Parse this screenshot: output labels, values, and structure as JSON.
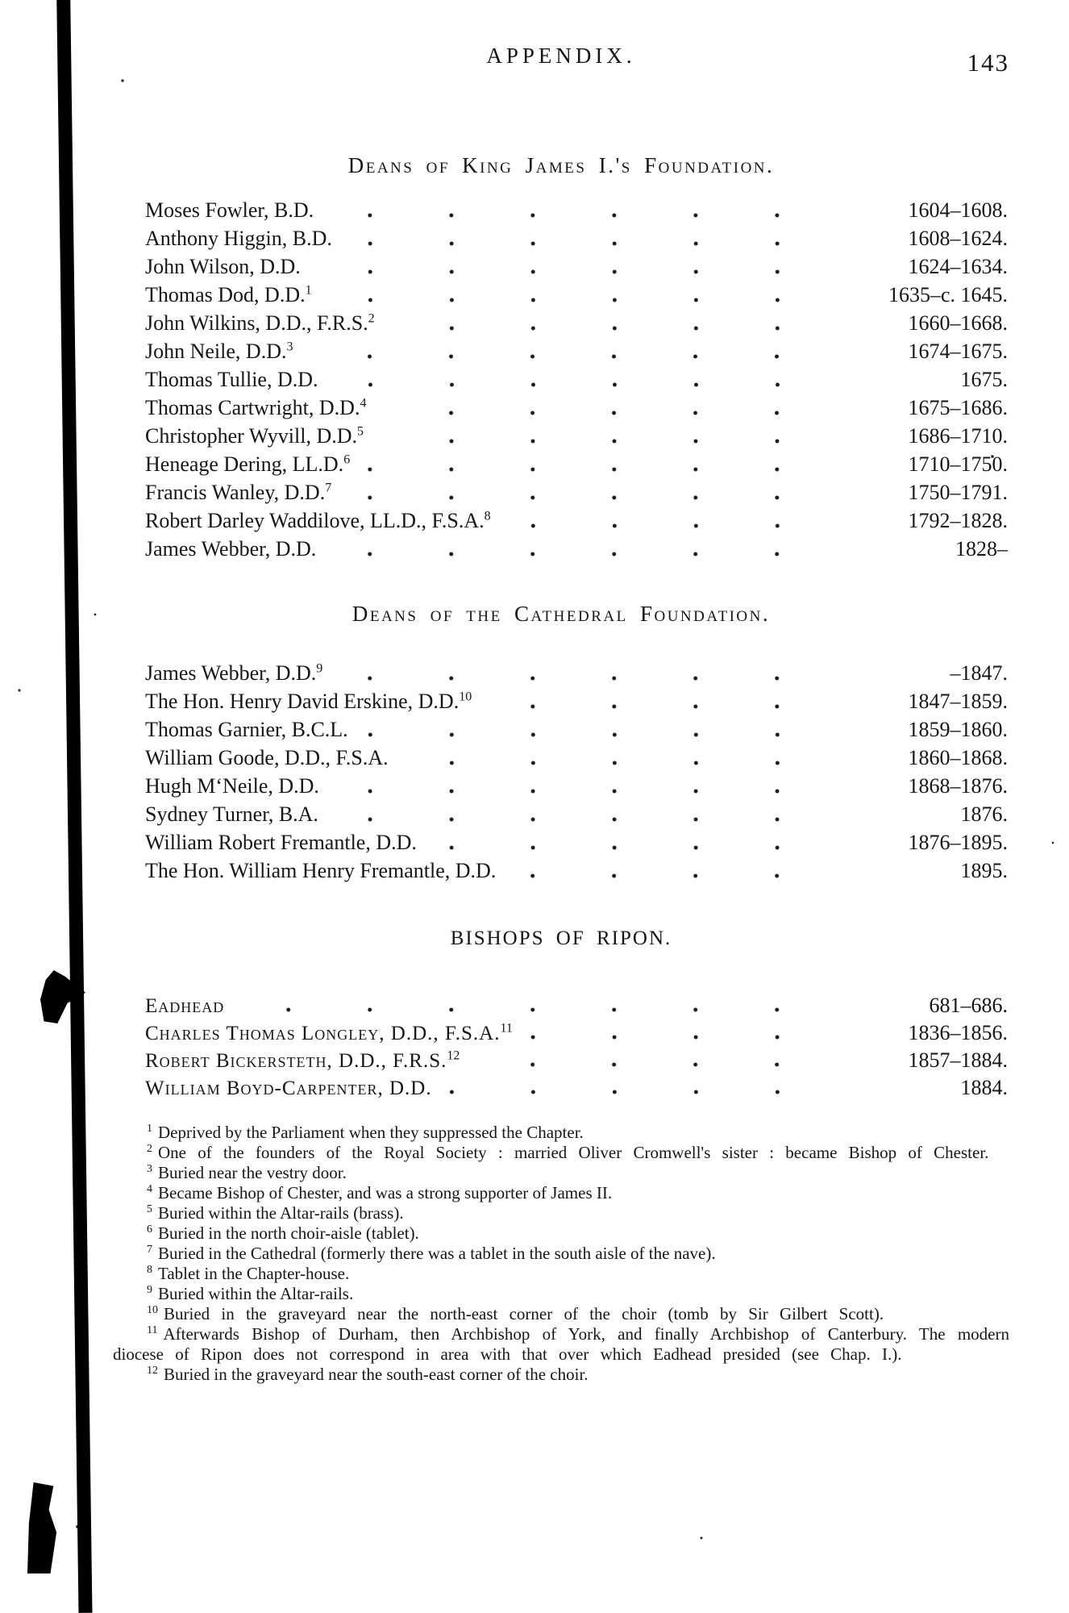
{
  "page": {
    "header": "APPENDIX.",
    "page_number": "143"
  },
  "sections": [
    {
      "title": "Deans of King James I.'s Foundation.",
      "entries": [
        {
          "name": "Moses Fowler, B.D.",
          "sup": "",
          "date": "1604–1608."
        },
        {
          "name": "Anthony Higgin, B.D.",
          "sup": "",
          "date": "1608–1624."
        },
        {
          "name": "John Wilson, D.D.",
          "sup": "",
          "date": "1624–1634."
        },
        {
          "name": "Thomas Dod, D.D.",
          "sup": "1",
          "date": "1635–c. 1645."
        },
        {
          "name": "John Wilkins, D.D., F.R.S.",
          "sup": "2",
          "date": "1660–1668."
        },
        {
          "name": "John Neile, D.D.",
          "sup": "3",
          "date": "1674–1675."
        },
        {
          "name": "Thomas Tullie, D.D.",
          "sup": "",
          "date": "1675."
        },
        {
          "name": "Thomas Cartwright, D.D.",
          "sup": "4",
          "date": "1675–1686."
        },
        {
          "name": "Christopher Wyvill, D.D.",
          "sup": "5",
          "date": "1686–1710."
        },
        {
          "name": "Heneage Dering, LL.D.",
          "sup": "6",
          "date": "1710–1750."
        },
        {
          "name": "Francis Wanley, D.D.",
          "sup": "7",
          "date": "1750–1791."
        },
        {
          "name": "Robert Darley Waddilove, LL.D., F.S.A.",
          "sup": "8",
          "date": "1792–1828."
        },
        {
          "name": "James Webber, D.D.",
          "sup": "",
          "date": "1828–"
        }
      ]
    },
    {
      "title": "Deans of the Cathedral Foundation.",
      "entries": [
        {
          "name": "James Webber, D.D.",
          "sup": "9",
          "date": "–1847."
        },
        {
          "name": "The Hon. Henry David Erskine, D.D.",
          "sup": "10",
          "date": "1847–1859."
        },
        {
          "name": "Thomas Garnier, B.C.L.",
          "sup": "",
          "date": "1859–1860."
        },
        {
          "name": "William Goode, D.D., F.S.A.",
          "sup": "",
          "date": "1860–1868."
        },
        {
          "name": "Hugh M‘Neile, D.D.",
          "sup": "",
          "date": "1868–1876."
        },
        {
          "name": "Sydney Turner, B.A.",
          "sup": "",
          "date": "1876."
        },
        {
          "name": "William Robert Fremantle, D.D.",
          "sup": "",
          "date": "1876–1895."
        },
        {
          "name": "The Hon. William Henry Fremantle, D.D.",
          "sup": "",
          "date": "1895."
        }
      ]
    },
    {
      "title": "BISHOPS OF RIPON.",
      "entries": [
        {
          "name": "Eadhead",
          "sup": "",
          "date": "681–686."
        },
        {
          "name": "Charles Thomas Longley, D.D., F.S.A.",
          "sup": "11",
          "date": "1836–1856."
        },
        {
          "name": "Robert Bickersteth, D.D., F.R.S.",
          "sup": "12",
          "date": "1857–1884."
        },
        {
          "name": "William Boyd-Carpenter, D.D.",
          "sup": "",
          "date": "1884."
        }
      ]
    }
  ],
  "footnotes": [
    {
      "marker": "1",
      "text": "Deprived by the Parliament when they suppressed the Chapter."
    },
    {
      "marker": "2",
      "text": "One of the founders of the Royal Society :  married Oliver Cromwell's sister : became Bishop of Chester."
    },
    {
      "marker": "3",
      "text": "Buried near the vestry door."
    },
    {
      "marker": "4",
      "text": "Became Bishop of Chester, and was a strong supporter of James II."
    },
    {
      "marker": "5",
      "text": "Buried within the Altar-rails (brass)."
    },
    {
      "marker": "6",
      "text": "Buried in the north choir-aisle (tablet)."
    },
    {
      "marker": "7",
      "text": "Buried in the Cathedral (formerly there was a tablet in the south aisle of the nave)."
    },
    {
      "marker": "8",
      "text": "Tablet in the Chapter-house."
    },
    {
      "marker": "9",
      "text": "Buried within the Altar-rails."
    },
    {
      "marker": "10",
      "text": "Buried in the graveyard near the north-east corner of the choir (tomb by Sir Gilbert Scott)."
    },
    {
      "marker": "11",
      "text": "Afterwards Bishop of Durham, then Archbishop of York, and finally Archbishop of Canterbury.  The modern diocese of Ripon does not correspond in area with that over which Eadhead presided (see Chap. I.)."
    },
    {
      "marker": "12",
      "text": "Buried in the graveyard near the south-east corner of the choir."
    }
  ]
}
